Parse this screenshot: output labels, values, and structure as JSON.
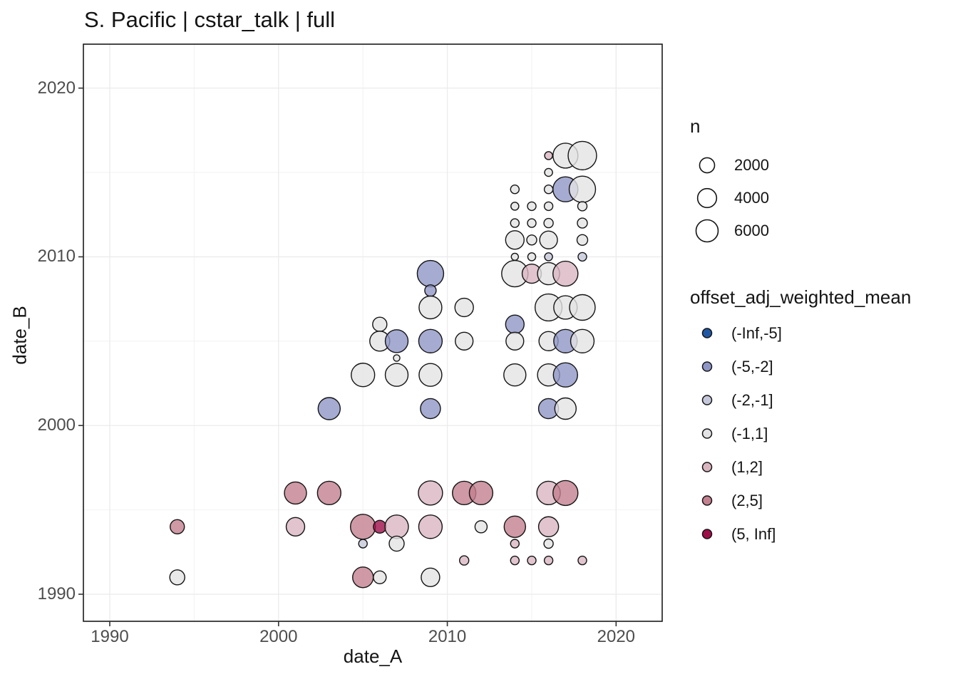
{
  "chart_data": {
    "type": "scatter",
    "title": "S. Pacific | cstar_talk | full",
    "xlabel": "date_A",
    "ylabel": "date_B",
    "xlim": [
      1988.4,
      2022.7
    ],
    "ylim": [
      1988.4,
      2022.6
    ],
    "x_ticks": [
      1990,
      2000,
      2010,
      2020
    ],
    "y_ticks": [
      1990,
      2000,
      2010,
      2020
    ],
    "x_minor_gridlines": [
      1995,
      2005,
      2015
    ],
    "y_minor_gridlines": [
      1995,
      2005,
      2015
    ],
    "grid": true,
    "legend_position": "right",
    "size_legend": {
      "title": "n",
      "values": [
        2000,
        4000,
        6000
      ]
    },
    "color_legend": {
      "title": "offset_adj_weighted_mean",
      "bins": [
        {
          "label": "(-Inf,-5]",
          "color": "#2057a5"
        },
        {
          "label": "(-5,-2]",
          "color": "#8e96c5"
        },
        {
          "label": "(-2,-1]",
          "color": "#c5c8da"
        },
        {
          "label": "(-1,1]",
          "color": "#e3e3e5"
        },
        {
          "label": "(1,2]",
          "color": "#d9b5c0"
        },
        {
          "label": "(2,5]",
          "color": "#c3808f"
        },
        {
          "label": "(5, Inf]",
          "color": "#9e0e49"
        }
      ]
    },
    "points": [
      {
        "x": 1994,
        "y": 1994,
        "n": 1700,
        "bin": "(2,5]"
      },
      {
        "x": 1994,
        "y": 1991,
        "n": 2000,
        "bin": "(-1,1]"
      },
      {
        "x": 2001,
        "y": 1996,
        "n": 6000,
        "bin": "(2,5]"
      },
      {
        "x": 2001,
        "y": 1994,
        "n": 3700,
        "bin": "(1,2]"
      },
      {
        "x": 2003,
        "y": 1996,
        "n": 7000,
        "bin": "(2,5]"
      },
      {
        "x": 2003,
        "y": 2001,
        "n": 6000,
        "bin": "(-5,-2]"
      },
      {
        "x": 2005,
        "y": 1994,
        "n": 8200,
        "bin": "(2,5]"
      },
      {
        "x": 2005,
        "y": 1993,
        "n": 230,
        "bin": "(-2,-1]"
      },
      {
        "x": 2005,
        "y": 1991,
        "n": 5000,
        "bin": "(2,5]"
      },
      {
        "x": 2005,
        "y": 2003,
        "n": 7000,
        "bin": "(-1,1]"
      },
      {
        "x": 2006,
        "y": 1994,
        "n": 1200,
        "bin": "(5, Inf]"
      },
      {
        "x": 2006,
        "y": 1991,
        "n": 1200,
        "bin": "(-1,1]"
      },
      {
        "x": 2006,
        "y": 2005,
        "n": 4600,
        "bin": "(-1,1]"
      },
      {
        "x": 2006,
        "y": 2006,
        "n": 1700,
        "bin": "(-1,1]"
      },
      {
        "x": 2007,
        "y": 1994,
        "n": 7000,
        "bin": "(1,2]"
      },
      {
        "x": 2007,
        "y": 1993,
        "n": 2000,
        "bin": "(-1,1]"
      },
      {
        "x": 2007,
        "y": 2003,
        "n": 6500,
        "bin": "(-1,1]"
      },
      {
        "x": 2007,
        "y": 2004,
        "n": 30,
        "bin": "(-1,1]"
      },
      {
        "x": 2007,
        "y": 2005,
        "n": 6500,
        "bin": "(-5,-2]"
      },
      {
        "x": 2009,
        "y": 1996,
        "n": 7600,
        "bin": "(1,2]"
      },
      {
        "x": 2009,
        "y": 1994,
        "n": 7000,
        "bin": "(1,2]"
      },
      {
        "x": 2009,
        "y": 1991,
        "n": 3700,
        "bin": "(-1,1]"
      },
      {
        "x": 2009,
        "y": 2001,
        "n": 4600,
        "bin": "(-5,-2]"
      },
      {
        "x": 2009,
        "y": 2003,
        "n": 6500,
        "bin": "(-1,1]"
      },
      {
        "x": 2009,
        "y": 2005,
        "n": 7000,
        "bin": "(-5,-2]"
      },
      {
        "x": 2009,
        "y": 2007,
        "n": 6500,
        "bin": "(-1,1]"
      },
      {
        "x": 2009,
        "y": 2008,
        "n": 800,
        "bin": "(-5,-2]"
      },
      {
        "x": 2009,
        "y": 2009,
        "n": 9400,
        "bin": "(-5,-2]"
      },
      {
        "x": 2011,
        "y": 1996,
        "n": 7000,
        "bin": "(2,5]"
      },
      {
        "x": 2011,
        "y": 1992,
        "n": 340,
        "bin": "(1,2]"
      },
      {
        "x": 2011,
        "y": 2005,
        "n": 3300,
        "bin": "(-1,1]"
      },
      {
        "x": 2011,
        "y": 2007,
        "n": 3700,
        "bin": "(-1,1]"
      },
      {
        "x": 2012,
        "y": 1996,
        "n": 7000,
        "bin": "(2,5]"
      },
      {
        "x": 2012,
        "y": 1994,
        "n": 1000,
        "bin": "(-1,1]"
      },
      {
        "x": 2014,
        "y": 1994,
        "n": 5500,
        "bin": "(2,5]"
      },
      {
        "x": 2014,
        "y": 1993,
        "n": 230,
        "bin": "(1,2]"
      },
      {
        "x": 2014,
        "y": 1992,
        "n": 230,
        "bin": "(1,2]"
      },
      {
        "x": 2014,
        "y": 2003,
        "n": 6000,
        "bin": "(-1,1]"
      },
      {
        "x": 2014,
        "y": 2005,
        "n": 3300,
        "bin": "(-1,1]"
      },
      {
        "x": 2014,
        "y": 2006,
        "n": 3700,
        "bin": "(-5,-2]"
      },
      {
        "x": 2014,
        "y": 2009,
        "n": 9400,
        "bin": "(-1,1]"
      },
      {
        "x": 2014,
        "y": 2010,
        "n": 70,
        "bin": "(-1,1]"
      },
      {
        "x": 2014,
        "y": 2011,
        "n": 3700,
        "bin": "(-1,1]"
      },
      {
        "x": 2014,
        "y": 2012,
        "n": 230,
        "bin": "(-1,1]"
      },
      {
        "x": 2014,
        "y": 2013,
        "n": 150,
        "bin": "(-1,1]"
      },
      {
        "x": 2014,
        "y": 2014,
        "n": 230,
        "bin": "(-1,1]"
      },
      {
        "x": 2015,
        "y": 1992,
        "n": 230,
        "bin": "(1,2]"
      },
      {
        "x": 2015,
        "y": 2009,
        "n": 4100,
        "bin": "(1,2]"
      },
      {
        "x": 2015,
        "y": 2010,
        "n": 150,
        "bin": "(-1,1]"
      },
      {
        "x": 2015,
        "y": 2011,
        "n": 470,
        "bin": "(-1,1]"
      },
      {
        "x": 2015,
        "y": 2012,
        "n": 230,
        "bin": "(-1,1]"
      },
      {
        "x": 2015,
        "y": 2013,
        "n": 230,
        "bin": "(-1,1]"
      },
      {
        "x": 2016,
        "y": 1996,
        "n": 7000,
        "bin": "(1,2]"
      },
      {
        "x": 2016,
        "y": 1994,
        "n": 4600,
        "bin": "(1,2]"
      },
      {
        "x": 2016,
        "y": 1993,
        "n": 340,
        "bin": "(-1,1]"
      },
      {
        "x": 2016,
        "y": 1992,
        "n": 230,
        "bin": "(1,2]"
      },
      {
        "x": 2016,
        "y": 2001,
        "n": 4600,
        "bin": "(-5,-2]"
      },
      {
        "x": 2016,
        "y": 2003,
        "n": 6000,
        "bin": "(-1,1]"
      },
      {
        "x": 2016,
        "y": 2005,
        "n": 4100,
        "bin": "(-1,1]"
      },
      {
        "x": 2016,
        "y": 2007,
        "n": 10000,
        "bin": "(-1,1]"
      },
      {
        "x": 2016,
        "y": 2009,
        "n": 6000,
        "bin": "(-1,1]"
      },
      {
        "x": 2016,
        "y": 2010,
        "n": 150,
        "bin": "(-2,-1]"
      },
      {
        "x": 2016,
        "y": 2011,
        "n": 3300,
        "bin": "(-1,1]"
      },
      {
        "x": 2016,
        "y": 2012,
        "n": 340,
        "bin": "(-1,1]"
      },
      {
        "x": 2016,
        "y": 2013,
        "n": 230,
        "bin": "(-1,1]"
      },
      {
        "x": 2016,
        "y": 2014,
        "n": 230,
        "bin": "(-1,1]"
      },
      {
        "x": 2016,
        "y": 2015,
        "n": 150,
        "bin": "(-1,1]"
      },
      {
        "x": 2016,
        "y": 2016,
        "n": 150,
        "bin": "(1,2]"
      },
      {
        "x": 2017,
        "y": 1996,
        "n": 8200,
        "bin": "(2,5]"
      },
      {
        "x": 2017,
        "y": 2001,
        "n": 5500,
        "bin": "(-1,1]"
      },
      {
        "x": 2017,
        "y": 2003,
        "n": 7600,
        "bin": "(-5,-2]"
      },
      {
        "x": 2017,
        "y": 2005,
        "n": 7000,
        "bin": "(-5,-2]"
      },
      {
        "x": 2017,
        "y": 2007,
        "n": 7000,
        "bin": "(-1,1]"
      },
      {
        "x": 2017,
        "y": 2009,
        "n": 8200,
        "bin": "(1,2]"
      },
      {
        "x": 2017,
        "y": 2014,
        "n": 8200,
        "bin": "(-5,-2]"
      },
      {
        "x": 2017,
        "y": 2016,
        "n": 8200,
        "bin": "(-1,1]"
      },
      {
        "x": 2018,
        "y": 1992,
        "n": 230,
        "bin": "(1,2]"
      },
      {
        "x": 2018,
        "y": 2005,
        "n": 7000,
        "bin": "(-1,1]"
      },
      {
        "x": 2018,
        "y": 2007,
        "n": 8800,
        "bin": "(-1,1]"
      },
      {
        "x": 2018,
        "y": 2010,
        "n": 230,
        "bin": "(-2,-1]"
      },
      {
        "x": 2018,
        "y": 2011,
        "n": 620,
        "bin": "(-1,1]"
      },
      {
        "x": 2018,
        "y": 2012,
        "n": 470,
        "bin": "(-1,1]"
      },
      {
        "x": 2018,
        "y": 2013,
        "n": 340,
        "bin": "(-1,1]"
      },
      {
        "x": 2018,
        "y": 2014,
        "n": 9400,
        "bin": "(-1,1]"
      },
      {
        "x": 2018,
        "y": 2016,
        "n": 11400,
        "bin": "(-1,1]"
      }
    ]
  }
}
